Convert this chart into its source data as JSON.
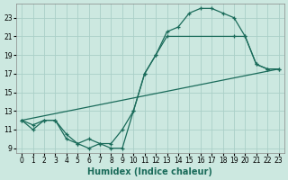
{
  "xlabel": "Humidex (Indice chaleur)",
  "background_color": "#cce8e0",
  "grid_color": "#aacfc8",
  "line_color": "#1a6b5a",
  "xlim": [
    -0.5,
    23.5
  ],
  "ylim": [
    8.5,
    24.5
  ],
  "xticks": [
    0,
    1,
    2,
    3,
    4,
    5,
    6,
    7,
    8,
    9,
    10,
    11,
    12,
    13,
    14,
    15,
    16,
    17,
    18,
    19,
    20,
    21,
    22,
    23
  ],
  "yticks": [
    9,
    11,
    13,
    15,
    17,
    19,
    21,
    23
  ],
  "series": [
    {
      "x": [
        0,
        1,
        2,
        3,
        4,
        5,
        6,
        7,
        8,
        9,
        10,
        11,
        12,
        13,
        14,
        15,
        16,
        17,
        18,
        19,
        20,
        21,
        22,
        23
      ],
      "y": [
        12,
        11,
        12,
        12,
        10,
        9.5,
        9,
        9.5,
        9,
        9,
        13,
        17,
        19,
        21.5,
        22,
        23.5,
        24,
        24,
        23.5,
        23,
        21,
        18,
        17.5,
        17.5
      ]
    },
    {
      "x": [
        0,
        1,
        2,
        3,
        4,
        5,
        6,
        7,
        8,
        9,
        10,
        11,
        12,
        13,
        19,
        20,
        21,
        22,
        23
      ],
      "y": [
        12,
        11.5,
        12,
        12,
        10.5,
        9.5,
        10,
        9.5,
        9.5,
        11,
        13,
        17,
        19,
        21,
        21,
        21,
        18,
        17.5,
        17.5
      ]
    },
    {
      "x": [
        0,
        23
      ],
      "y": [
        12,
        17.5
      ]
    }
  ]
}
